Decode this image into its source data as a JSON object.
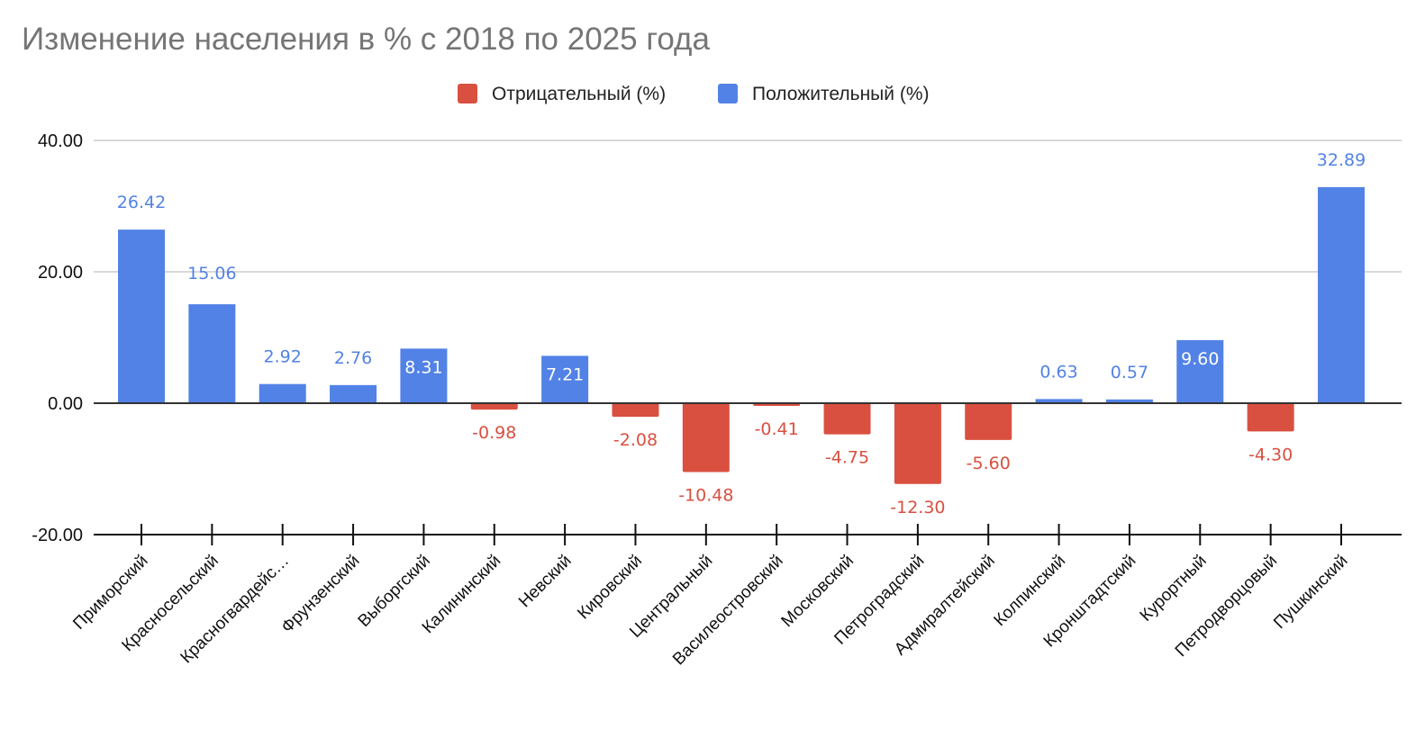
{
  "chart_data": {
    "type": "bar",
    "title": "Изменение населения в % с 2018 по 2025 года",
    "xlabel": "",
    "ylabel": "",
    "ylim": [
      -20,
      40
    ],
    "yticks": [
      "40.00",
      "20.00",
      "0.00",
      "-20.00"
    ],
    "ytick_values": [
      40,
      20,
      0,
      -20
    ],
    "grid": true,
    "legend_position": "top-center",
    "categories": [
      "Приморский",
      "Красносельский",
      "Красногвардейс…",
      "Фрунзенский",
      "Выборгский",
      "Калининский",
      "Невский",
      "Кировский",
      "Центральный",
      "Василеостровский",
      "Московский",
      "Петроградский",
      "Адмиралтейский",
      "Колпинский",
      "Кронштадтский",
      "Курортный",
      "Петродворцовый",
      "Пушкинский"
    ],
    "series": [
      {
        "name": "Отрицательный (%)",
        "color": "#d95040",
        "values": [
          null,
          null,
          null,
          null,
          null,
          -0.98,
          null,
          -2.08,
          -10.48,
          -0.41,
          -4.75,
          -12.3,
          -5.6,
          null,
          null,
          null,
          -4.3,
          null
        ],
        "labels": [
          null,
          null,
          null,
          null,
          null,
          "-0.98",
          null,
          "-2.08",
          "-10.48",
          "-0.41",
          "-4.75",
          "-12.30",
          "-5.60",
          null,
          null,
          null,
          "-4.30",
          null
        ]
      },
      {
        "name": "Положительный (%)",
        "color": "#5282e6",
        "values": [
          26.42,
          15.06,
          2.92,
          2.76,
          8.31,
          null,
          7.21,
          null,
          null,
          null,
          null,
          null,
          null,
          0.63,
          0.57,
          9.6,
          null,
          32.89
        ],
        "labels": [
          "26.42",
          "15.06",
          "2.92",
          "2.76",
          "8.31",
          null,
          "7.21",
          null,
          null,
          null,
          null,
          null,
          null,
          "0.63",
          "0.57",
          "9.60",
          null,
          "32.89"
        ]
      }
    ]
  }
}
